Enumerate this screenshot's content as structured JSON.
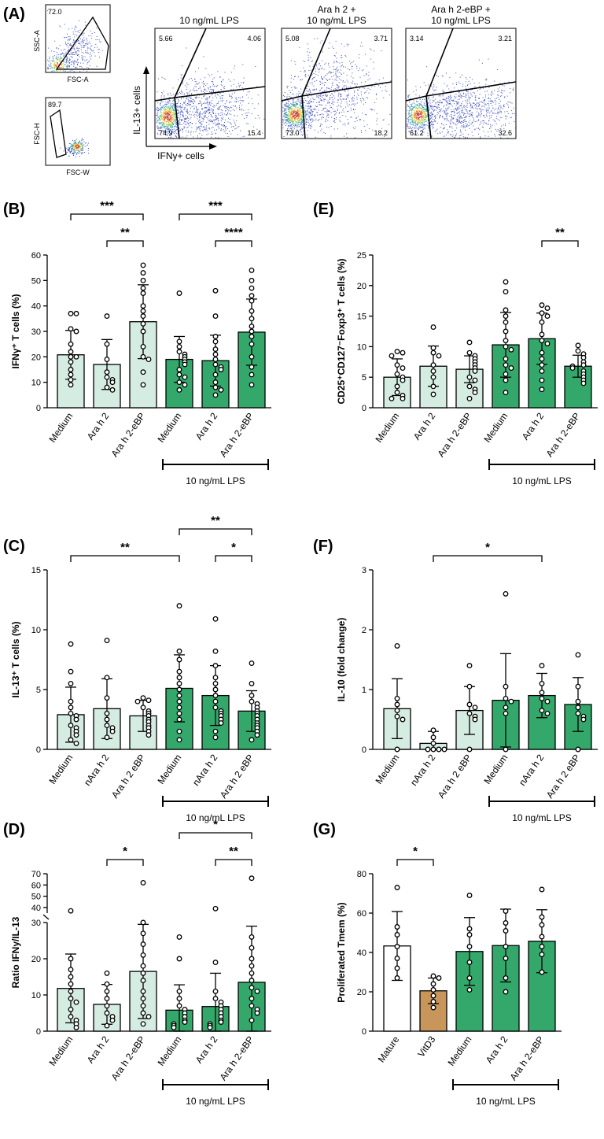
{
  "colors": {
    "light": "#d4ece2",
    "dark": "#34a86a",
    "vitd3": "#c8955a",
    "white": "#ffffff",
    "dot": "#ffffff"
  },
  "panelA": {
    "label": "(A)",
    "gate1": {
      "ylabel": "SSC-A",
      "xlabel": "FSC-A",
      "value": "72.0"
    },
    "gate2": {
      "ylabel": "FSC-H",
      "xlabel": "FSC-W",
      "value": "89.7"
    },
    "yaxis": "IL-13+ cells",
    "xaxis": "IFNy+ cells",
    "plots": [
      {
        "title": "10 ng/mL LPS",
        "ul": "5.66",
        "ur": "4.06",
        "ll": "74.9",
        "lr": "15.4"
      },
      {
        "title": "Ara h 2 + 10 ng/mL LPS",
        "title1": "Ara h 2 +",
        "title2": "10 ng/mL LPS",
        "ul": "5.08",
        "ur": "3.71",
        "ll": "73.0",
        "lr": "18.2"
      },
      {
        "title": "Ara h 2-eBP + 10 ng/mL LPS",
        "title1": "Ara h 2-eBP +",
        "title2": "10 ng/mL LPS",
        "ul": "3.14",
        "ur": "3.21",
        "ll": "61.2",
        "lr": "32.6"
      }
    ]
  },
  "chart_data": [
    {
      "id": "B",
      "label": "(B)",
      "type": "bar",
      "ylabel": "IFNγ⁺ T cells (%)",
      "ylim": [
        0,
        60
      ],
      "yticks": [
        0,
        10,
        20,
        30,
        40,
        50,
        60
      ],
      "categories": [
        "Medium",
        "Ara h 2",
        "Ara h 2-eBP",
        "Medium",
        "Ara h 2",
        "Ara h 2-eBP"
      ],
      "values": [
        20.8,
        17.0,
        33.8,
        19.0,
        18.5,
        29.7
      ],
      "sd": [
        9.6,
        9.8,
        14.5,
        9.0,
        10.0,
        13.0
      ],
      "colors": [
        "light",
        "light",
        "light",
        "dark",
        "dark",
        "dark"
      ],
      "points": [
        [
          37,
          37,
          31,
          30,
          25,
          22,
          20,
          20,
          18,
          15,
          13,
          11,
          9
        ],
        [
          36,
          25,
          19,
          14,
          12,
          11,
          10,
          8,
          7
        ],
        [
          56,
          53,
          50,
          47,
          45,
          40,
          38,
          36,
          33,
          30,
          24,
          20,
          19,
          14,
          9
        ],
        [
          45,
          26,
          24,
          22,
          21,
          20,
          19,
          18,
          17,
          15,
          13,
          12,
          10,
          9,
          7
        ],
        [
          46,
          36,
          28,
          26,
          23,
          21,
          19,
          17,
          16,
          15,
          13,
          10,
          8,
          7,
          5
        ],
        [
          54,
          50,
          47,
          44,
          42,
          38,
          35,
          32,
          30,
          28,
          25,
          20,
          16,
          13,
          9
        ]
      ],
      "lps": "10 ng/mL LPS",
      "sig": [
        {
          "from": 0,
          "to": 2,
          "text": "***",
          "level": 2
        },
        {
          "from": 1,
          "to": 2,
          "text": "**",
          "level": 1
        },
        {
          "from": 3,
          "to": 5,
          "text": "***",
          "level": 2
        },
        {
          "from": 4,
          "to": 5,
          "text": "****",
          "level": 1
        }
      ]
    },
    {
      "id": "E",
      "label": "(E)",
      "type": "bar",
      "ylabel": "CD25⁺CD127⁻Foxp3⁺ T cells (%)",
      "ylim": [
        0,
        25
      ],
      "yticks": [
        0,
        5,
        10,
        15,
        20,
        25
      ],
      "categories": [
        "Medium",
        "Ara h 2",
        "Ara h 2-eBP",
        "Medium",
        "Ara h 2",
        "Ara h 2-eBP"
      ],
      "values": [
        5.0,
        6.8,
        6.3,
        10.3,
        11.3,
        6.8
      ],
      "sd": [
        3.0,
        3.3,
        2.2,
        5.3,
        4.2,
        1.8
      ],
      "colors": [
        "light",
        "light",
        "light",
        "dark",
        "dark",
        "dark"
      ],
      "points": [
        [
          9.2,
          9,
          8.5,
          7,
          6.5,
          5.5,
          5,
          4.5,
          3.5,
          2.5,
          2,
          1.5,
          1.5
        ],
        [
          13.2,
          9.8,
          9,
          8.5,
          7,
          6,
          5,
          3.5,
          2.2
        ],
        [
          10.7,
          9,
          8.5,
          8,
          7.5,
          7,
          6.5,
          6,
          5,
          4.5,
          3.5,
          3,
          2.5,
          1.5
        ],
        [
          20.6,
          19,
          16,
          15,
          14,
          12.5,
          11,
          10,
          9.5,
          8,
          7,
          6.5,
          5.5,
          4.5,
          2.5
        ],
        [
          16.8,
          16.3,
          15.5,
          15,
          14,
          12,
          11,
          10.5,
          9,
          8,
          7,
          6,
          4.5,
          3
        ],
        [
          10.2,
          9.3,
          8.8,
          8.2,
          7.5,
          7,
          6.8,
          6.5,
          6,
          5.5,
          5,
          4.5,
          4
        ]
      ],
      "lps": "10 ng/mL LPS",
      "sig": [
        {
          "from": 4,
          "to": 5,
          "text": "**",
          "level": 1
        }
      ]
    },
    {
      "id": "C",
      "label": "(C)",
      "type": "bar",
      "ylabel": "IL-13⁺ T cells (%)",
      "ylim": [
        0,
        15
      ],
      "yticks": [
        0,
        5,
        10,
        15
      ],
      "categories": [
        "Medium",
        "nAra h 2",
        "Ara h 2 eBP",
        "Medium",
        "nAra h 2",
        "Ara h 2 eBP"
      ],
      "values": [
        2.9,
        3.4,
        2.8,
        5.1,
        4.5,
        3.2
      ],
      "sd": [
        2.3,
        2.5,
        1.3,
        2.8,
        2.5,
        1.7
      ],
      "colors": [
        "light",
        "light",
        "light",
        "dark",
        "dark",
        "dark"
      ],
      "points": [
        [
          8.8,
          6.5,
          5.5,
          4,
          3.5,
          3,
          2.8,
          2.5,
          2,
          1.8,
          1.5,
          1.2,
          0.8,
          0.5
        ],
        [
          9.1,
          6,
          4.3,
          3,
          2.5,
          2,
          1.8,
          1.5,
          1
        ],
        [
          4.3,
          4.1,
          4,
          3.5,
          3.2,
          3,
          2.8,
          2.5,
          2.3,
          2,
          1.8,
          1.5,
          1.2
        ],
        [
          12,
          8.2,
          7.5,
          6.5,
          6,
          5.5,
          5,
          4.5,
          4,
          3.5,
          3,
          2.5,
          1.5,
          0.8
        ],
        [
          10.9,
          8.2,
          7,
          6,
          5.5,
          5,
          4.5,
          4,
          3.5,
          3.2,
          3,
          2.8,
          2.5,
          2.2,
          1.5,
          1
        ],
        [
          7.2,
          5.5,
          4.5,
          4,
          3.8,
          3.5,
          3.2,
          3,
          2.8,
          2.5,
          2.2,
          2,
          1.8,
          1.5,
          1.2,
          0.8
        ]
      ],
      "lps": "10 ng/mL LPS",
      "sig": [
        {
          "from": 0,
          "to": 3,
          "text": "**",
          "level": 1
        },
        {
          "from": 3,
          "to": 5,
          "text": "**",
          "level": 2
        },
        {
          "from": 4,
          "to": 5,
          "text": "*",
          "level": 1
        }
      ]
    },
    {
      "id": "F",
      "label": "(F)",
      "type": "bar",
      "ylabel": "IL-10 (fold change)",
      "ylim": [
        0,
        3
      ],
      "yticks": [
        0,
        1,
        2,
        3
      ],
      "categories": [
        "Medium",
        "nAra h 2",
        "Ara h 2 eBP",
        "Medium",
        "nAra h 2",
        "Ara h 2 eBP"
      ],
      "values": [
        0.68,
        0.1,
        0.65,
        0.82,
        0.9,
        0.75
      ],
      "sd": [
        0.5,
        0.2,
        0.4,
        0.78,
        0.37,
        0.45
      ],
      "colors": [
        "light",
        "light",
        "light",
        "dark",
        "dark",
        "dark"
      ],
      "points": [
        [
          1.73,
          0.85,
          0.75,
          0.65,
          0.55,
          0.5,
          0.0
        ],
        [
          0.32,
          0.2,
          0.1,
          0.0,
          0.0,
          0.0,
          0.0
        ],
        [
          1.4,
          1.05,
          0.75,
          0.7,
          0.6,
          0.55,
          0.5,
          0.0
        ],
        [
          2.6,
          1.05,
          0.85,
          0.8,
          0.7,
          0.6,
          0.0
        ],
        [
          1.4,
          1.1,
          0.95,
          0.85,
          0.8,
          0.65,
          0.6
        ],
        [
          1.58,
          1.05,
          0.8,
          0.7,
          0.6,
          0.55,
          0.5,
          0.0
        ]
      ],
      "lps": "10 ng/mL LPS",
      "sig": [
        {
          "from": 1,
          "to": 4,
          "text": "*",
          "level": 1
        }
      ]
    },
    {
      "id": "D",
      "label": "(D)",
      "type": "bar",
      "ylabel": "Ratio IFNy/IL-13",
      "broken": true,
      "ylim": [
        0,
        30
      ],
      "yticks": [
        0,
        10,
        20,
        30
      ],
      "upper_ticks": [
        40,
        50,
        60,
        70
      ],
      "categories": [
        "Medium",
        "Ara h 2",
        "Ara h 2-eBP",
        "Medium",
        "Ara h 2",
        "Ara h 2-eBP"
      ],
      "values": [
        11.8,
        7.4,
        16.5,
        5.8,
        6.8,
        13.5
      ],
      "sd": [
        9.5,
        5.5,
        13.0,
        7.0,
        9.2,
        15.5
      ],
      "colors": [
        "light",
        "light",
        "light",
        "dark",
        "dark",
        "dark"
      ],
      "points": [
        [
          37,
          20,
          17,
          15,
          13,
          11,
          9,
          8,
          6,
          4,
          3,
          2,
          1
        ],
        [
          16,
          13,
          11,
          9,
          7,
          5,
          4,
          3,
          1.5
        ],
        [
          62,
          30,
          27,
          24,
          21,
          18,
          16,
          14,
          11,
          9,
          7,
          5,
          4,
          2
        ],
        [
          26,
          20,
          11,
          9,
          7,
          6,
          5,
          4,
          3,
          2.5,
          2,
          1.5,
          1
        ],
        [
          39,
          19,
          11,
          9,
          8,
          7,
          6,
          5,
          4,
          3,
          2.5,
          2,
          1.5,
          1
        ],
        [
          66,
          26,
          23,
          20,
          18,
          16,
          14,
          12,
          11,
          9,
          7,
          6,
          5,
          3
        ]
      ],
      "lps": "10 ng/mL LPS",
      "sig": [
        {
          "from": 1,
          "to": 2,
          "text": "*",
          "level": 1
        },
        {
          "from": 3,
          "to": 5,
          "text": "*",
          "level": 2
        },
        {
          "from": 4,
          "to": 5,
          "text": "**",
          "level": 1
        }
      ]
    },
    {
      "id": "G",
      "label": "(G)",
      "type": "bar",
      "ylabel": "Proliferated Tmem (%)",
      "ylim": [
        0,
        80
      ],
      "yticks": [
        0,
        20,
        40,
        60,
        80
      ],
      "categories": [
        "Mature",
        "VitD3",
        "Medium",
        "Ara h 2",
        "Ara h 2-eBP"
      ],
      "values": [
        43.3,
        20.5,
        40.5,
        43.5,
        45.7
      ],
      "sd": [
        17.5,
        6.5,
        17.2,
        18.5,
        16.0
      ],
      "colors": [
        "white",
        "vitd3",
        "dark",
        "dark",
        "dark"
      ],
      "points": [
        [
          73,
          53,
          49,
          43,
          37,
          32,
          27
        ],
        [
          28,
          27,
          24,
          21,
          18,
          15,
          12
        ],
        [
          69,
          52,
          49,
          43,
          35,
          27,
          21
        ],
        [
          61,
          55,
          51,
          43,
          37,
          27,
          20
        ],
        [
          72,
          58,
          54,
          48,
          43,
          39,
          30
        ]
      ],
      "lps": "10 ng/mL LPS",
      "sig": [
        {
          "from": 0,
          "to": 1,
          "text": "*",
          "level": 1
        }
      ]
    }
  ]
}
